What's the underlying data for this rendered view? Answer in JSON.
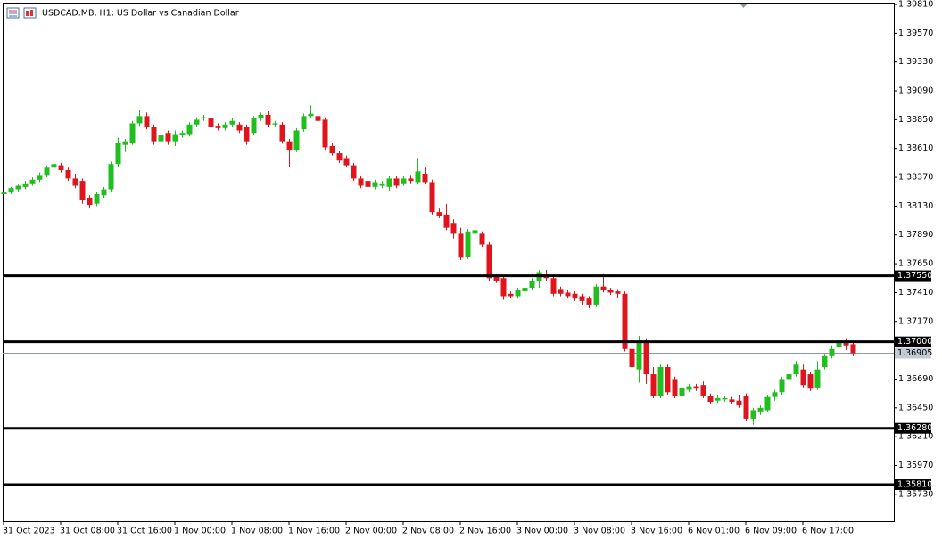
{
  "chart_data": {
    "type": "candlestick",
    "title": "USDCAD.MB, H1:  US Dollar vs Canadian Dollar",
    "up_color": "#1fbf1f",
    "down_color": "#e0141c",
    "categories": [
      "31 Oct 2023",
      null,
      null,
      null,
      null,
      null,
      null,
      null,
      "31 Oct 08:00",
      null,
      null,
      null,
      null,
      null,
      null,
      null,
      "31 Oct 16:00",
      null,
      null,
      null,
      null,
      null,
      null,
      null,
      "1 Nov 00:00",
      null,
      null,
      null,
      null,
      null,
      null,
      null,
      "1 Nov 08:00",
      null,
      null,
      null,
      null,
      null,
      null,
      null,
      "1 Nov 16:00",
      null,
      null,
      null,
      null,
      null,
      null,
      null,
      "2 Nov 00:00",
      null,
      null,
      null,
      null,
      null,
      null,
      null,
      "2 Nov 08:00",
      null,
      null,
      null,
      null,
      null,
      null,
      null,
      "2 Nov 16:00",
      null,
      null,
      null,
      null,
      null,
      null,
      null,
      "3 Nov 00:00",
      null,
      null,
      null,
      null,
      null,
      null,
      null,
      "3 Nov 08:00",
      null,
      null,
      null,
      null,
      null,
      null,
      null,
      "3 Nov 16:00",
      null,
      null,
      null,
      null,
      null,
      null,
      null,
      "6 Nov 01:00",
      null,
      null,
      null,
      null,
      null,
      null,
      null,
      "6 Nov 09:00",
      null,
      null,
      null,
      null,
      null,
      null,
      null,
      "6 Nov 17:00",
      null,
      null,
      null,
      null,
      null,
      null,
      null
    ],
    "ohlc": [
      [
        1.3823,
        1.3826,
        1.3821,
        1.3825
      ],
      [
        1.3825,
        1.3829,
        1.3823,
        1.3828
      ],
      [
        1.3827,
        1.3831,
        1.3825,
        1.383
      ],
      [
        1.3829,
        1.3834,
        1.3827,
        1.3832
      ],
      [
        1.3832,
        1.3837,
        1.383,
        1.3835
      ],
      [
        1.3835,
        1.3841,
        1.3833,
        1.3839
      ],
      [
        1.3839,
        1.3847,
        1.3837,
        1.3845
      ],
      [
        1.3845,
        1.385,
        1.3843,
        1.3848
      ],
      [
        1.3847,
        1.3849,
        1.3841,
        1.3843
      ],
      [
        1.3843,
        1.3845,
        1.3834,
        1.3836
      ],
      [
        1.3836,
        1.384,
        1.3828,
        1.383
      ],
      [
        1.3834,
        1.3836,
        1.3815,
        1.3818
      ],
      [
        1.382,
        1.3822,
        1.3811,
        1.3814
      ],
      [
        1.3815,
        1.3825,
        1.3813,
        1.3823
      ],
      [
        1.3822,
        1.3829,
        1.382,
        1.3827
      ],
      [
        1.3827,
        1.385,
        1.3825,
        1.3848
      ],
      [
        1.3848,
        1.387,
        1.3846,
        1.3866
      ],
      [
        1.3864,
        1.3869,
        1.3858,
        1.3867
      ],
      [
        1.3866,
        1.3884,
        1.3864,
        1.3882
      ],
      [
        1.3882,
        1.3893,
        1.388,
        1.3888
      ],
      [
        1.3888,
        1.3891,
        1.3877,
        1.3879
      ],
      [
        1.3879,
        1.3881,
        1.3864,
        1.3867
      ],
      [
        1.3867,
        1.3875,
        1.3865,
        1.3872
      ],
      [
        1.3874,
        1.3876,
        1.3864,
        1.3867
      ],
      [
        1.3867,
        1.3876,
        1.3863,
        1.3873
      ],
      [
        1.3872,
        1.3876,
        1.387,
        1.3874
      ],
      [
        1.3873,
        1.3883,
        1.3871,
        1.3881
      ],
      [
        1.3881,
        1.3887,
        1.3879,
        1.3885
      ],
      [
        1.3886,
        1.3889,
        1.3884,
        1.3887
      ],
      [
        1.3886,
        1.3888,
        1.3877,
        1.3879
      ],
      [
        1.388,
        1.3882,
        1.3876,
        1.3878
      ],
      [
        1.3878,
        1.3883,
        1.3876,
        1.3881
      ],
      [
        1.3881,
        1.3886,
        1.3879,
        1.3884
      ],
      [
        1.3881,
        1.3883,
        1.3874,
        1.3876
      ],
      [
        1.3879,
        1.3881,
        1.3864,
        1.3867
      ],
      [
        1.3874,
        1.3888,
        1.3872,
        1.3886
      ],
      [
        1.3886,
        1.3891,
        1.3884,
        1.3889
      ],
      [
        1.3889,
        1.3892,
        1.3879,
        1.3881
      ],
      [
        1.3881,
        1.3884,
        1.3879,
        1.3882
      ],
      [
        1.3881,
        1.3883,
        1.3865,
        1.3867
      ],
      [
        1.3867,
        1.3869,
        1.3846,
        1.386
      ],
      [
        1.386,
        1.3878,
        1.3858,
        1.3876
      ],
      [
        1.3877,
        1.389,
        1.3875,
        1.3888
      ],
      [
        1.3888,
        1.3897,
        1.3886,
        1.389
      ],
      [
        1.3888,
        1.3895,
        1.3882,
        1.3884
      ],
      [
        1.3885,
        1.3887,
        1.386,
        1.3862
      ],
      [
        1.3863,
        1.3866,
        1.3855,
        1.3857
      ],
      [
        1.3857,
        1.3859,
        1.3849,
        1.3851
      ],
      [
        1.3853,
        1.3855,
        1.3845,
        1.3847
      ],
      [
        1.3847,
        1.3849,
        1.3834,
        1.3836
      ],
      [
        1.3836,
        1.3838,
        1.3828,
        1.383
      ],
      [
        1.3834,
        1.3836,
        1.3827,
        1.3829
      ],
      [
        1.3829,
        1.3835,
        1.3827,
        1.3833
      ],
      [
        1.383,
        1.3834,
        1.3828,
        1.3832
      ],
      [
        1.3829,
        1.3838,
        1.3826,
        1.3836
      ],
      [
        1.3836,
        1.3838,
        1.3828,
        1.383
      ],
      [
        1.3832,
        1.3838,
        1.383,
        1.3836
      ],
      [
        1.3836,
        1.3839,
        1.3832,
        1.3834
      ],
      [
        1.3833,
        1.3853,
        1.3831,
        1.3842
      ],
      [
        1.384,
        1.3845,
        1.3831,
        1.3833
      ],
      [
        1.3833,
        1.3835,
        1.3806,
        1.3808
      ],
      [
        1.3808,
        1.3811,
        1.3803,
        1.3805
      ],
      [
        1.3806,
        1.3815,
        1.3793,
        1.3795
      ],
      [
        1.3799,
        1.3802,
        1.3786,
        1.379
      ],
      [
        1.379,
        1.3795,
        1.3768,
        1.377
      ],
      [
        1.3771,
        1.3794,
        1.3769,
        1.3792
      ],
      [
        1.379,
        1.38,
        1.3788,
        1.3793
      ],
      [
        1.379,
        1.3792,
        1.3779,
        1.3781
      ],
      [
        1.3781,
        1.3783,
        1.3751,
        1.3753
      ],
      [
        1.3755,
        1.3757,
        1.3749,
        1.3751
      ],
      [
        1.3753,
        1.3755,
        1.3735,
        1.3738
      ],
      [
        1.374,
        1.3742,
        1.3736,
        1.3738
      ],
      [
        1.3738,
        1.3745,
        1.3736,
        1.3743
      ],
      [
        1.3742,
        1.3747,
        1.374,
        1.3745
      ],
      [
        1.3745,
        1.3753,
        1.3743,
        1.3751
      ],
      [
        1.3751,
        1.376,
        1.3745,
        1.3758
      ],
      [
        1.3756,
        1.376,
        1.3751,
        1.3753
      ],
      [
        1.3753,
        1.3755,
        1.3738,
        1.374
      ],
      [
        1.3744,
        1.3746,
        1.3738,
        1.374
      ],
      [
        1.3741,
        1.3743,
        1.3736,
        1.3738
      ],
      [
        1.374,
        1.3742,
        1.3734,
        1.3736
      ],
      [
        1.3738,
        1.374,
        1.3731,
        1.3734
      ],
      [
        1.3736,
        1.3738,
        1.3728,
        1.3731
      ],
      [
        1.3731,
        1.3748,
        1.3729,
        1.3746
      ],
      [
        1.3746,
        1.3757,
        1.3741,
        1.3743
      ],
      [
        1.3743,
        1.3745,
        1.3739,
        1.3741
      ],
      [
        1.3742,
        1.3744,
        1.3737,
        1.374
      ],
      [
        1.374,
        1.3742,
        1.3692,
        1.3694
      ],
      [
        1.3694,
        1.3697,
        1.3666,
        1.3679
      ],
      [
        1.3677,
        1.3705,
        1.3666,
        1.3699
      ],
      [
        1.3699,
        1.3703,
        1.3665,
        1.3673
      ],
      [
        1.3673,
        1.3679,
        1.3653,
        1.3655
      ],
      [
        1.3655,
        1.3681,
        1.3653,
        1.3679
      ],
      [
        1.3679,
        1.3681,
        1.3656,
        1.3658
      ],
      [
        1.3669,
        1.3671,
        1.3653,
        1.3655
      ],
      [
        1.3655,
        1.3664,
        1.3653,
        1.3662
      ],
      [
        1.366,
        1.3665,
        1.3658,
        1.3663
      ],
      [
        1.3663,
        1.3665,
        1.3659,
        1.3661
      ],
      [
        1.3664,
        1.3667,
        1.3653,
        1.3655
      ],
      [
        1.3655,
        1.3657,
        1.3648,
        1.365
      ],
      [
        1.3651,
        1.3656,
        1.3649,
        1.3653
      ],
      [
        1.3652,
        1.3655,
        1.365,
        1.3653
      ],
      [
        1.3652,
        1.3654,
        1.3648,
        1.365
      ],
      [
        1.3651,
        1.3656,
        1.3645,
        1.3647
      ],
      [
        1.3655,
        1.3657,
        1.3634,
        1.3636
      ],
      [
        1.3636,
        1.3645,
        1.3631,
        1.3643
      ],
      [
        1.3642,
        1.3647,
        1.3639,
        1.3645
      ],
      [
        1.3643,
        1.3656,
        1.3641,
        1.3654
      ],
      [
        1.3654,
        1.366,
        1.3651,
        1.3658
      ],
      [
        1.3658,
        1.3671,
        1.3656,
        1.3669
      ],
      [
        1.3669,
        1.3676,
        1.3667,
        1.3673
      ],
      [
        1.3673,
        1.3684,
        1.3671,
        1.3681
      ],
      [
        1.3677,
        1.3681,
        1.3662,
        1.3664
      ],
      [
        1.3673,
        1.3675,
        1.3659,
        1.3661
      ],
      [
        1.3662,
        1.3684,
        1.366,
        1.3677
      ],
      [
        1.3679,
        1.369,
        1.3677,
        1.3688
      ],
      [
        1.3688,
        1.3697,
        1.3686,
        1.3694
      ],
      [
        1.3696,
        1.3704,
        1.3694,
        1.3699
      ],
      [
        1.3699,
        1.3703,
        1.3693,
        1.3697
      ],
      [
        1.3698,
        1.37,
        1.3688,
        1.36905
      ]
    ],
    "ylim": [
      1.35506,
      1.39825
    ],
    "yticks": [
      {
        "value": 1.3981,
        "label": "1.39810"
      },
      {
        "value": 1.3957,
        "label": "1.39570"
      },
      {
        "value": 1.3933,
        "label": "1.39330"
      },
      {
        "value": 1.3909,
        "label": "1.39090"
      },
      {
        "value": 1.3885,
        "label": "1.38850"
      },
      {
        "value": 1.3861,
        "label": "1.38610"
      },
      {
        "value": 1.3837,
        "label": "1.38370"
      },
      {
        "value": 1.3813,
        "label": "1.38130"
      },
      {
        "value": 1.3789,
        "label": "1.37890"
      },
      {
        "value": 1.3765,
        "label": "1.37650"
      },
      {
        "value": 1.3741,
        "label": "1.37410"
      },
      {
        "value": 1.3717,
        "label": "1.37170"
      },
      {
        "value": 1.3669,
        "label": "1.36690"
      },
      {
        "value": 1.3645,
        "label": "1.36450"
      },
      {
        "value": 1.3621,
        "label": "1.36210"
      },
      {
        "value": 1.3597,
        "label": "1.35970"
      },
      {
        "value": 1.3573,
        "label": "1.35730"
      }
    ],
    "levels": [
      {
        "value": 1.3755,
        "label": "1.37550"
      },
      {
        "value": 1.37,
        "label": "1.37000"
      },
      {
        "value": 1.3628,
        "label": "1.36280"
      },
      {
        "value": 1.3581,
        "label": "1.35810"
      }
    ],
    "bid": {
      "value": 1.36905,
      "label": "1.36905"
    }
  }
}
